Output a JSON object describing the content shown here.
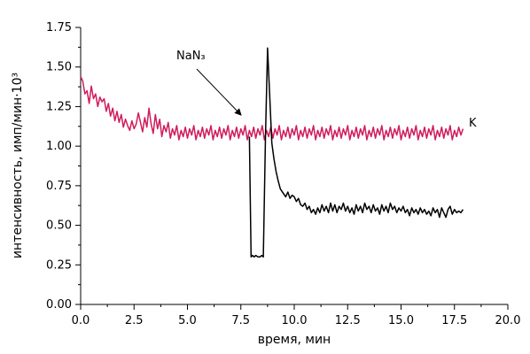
{
  "chart_data": {
    "type": "line",
    "xlabel": "время, мин",
    "ylabel": "интенсивность, имп/мин·10³",
    "xlim": [
      0,
      20
    ],
    "ylim": [
      0,
      1.75
    ],
    "xticks": [
      "0.0",
      "2.5",
      "5.0",
      "7.5",
      "10.0",
      "12.5",
      "15.0",
      "17.5",
      "20.0"
    ],
    "yticks": [
      "0.00",
      "0.25",
      "0.50",
      "0.75",
      "1.00",
      "1.25",
      "1.50",
      "1.75"
    ],
    "grid": false,
    "annotations": [
      {
        "text": "NaN₃",
        "points_to": {
          "x": 7.6,
          "y": 1.11
        }
      }
    ],
    "series": [
      {
        "name": "K",
        "color": "#d01c5b",
        "points": [
          [
            0.0,
            1.44
          ],
          [
            0.1,
            1.41
          ],
          [
            0.2,
            1.33
          ],
          [
            0.3,
            1.35
          ],
          [
            0.4,
            1.27
          ],
          [
            0.5,
            1.38
          ],
          [
            0.6,
            1.3
          ],
          [
            0.7,
            1.33
          ],
          [
            0.8,
            1.25
          ],
          [
            0.9,
            1.31
          ],
          [
            1.0,
            1.28
          ],
          [
            1.1,
            1.3
          ],
          [
            1.2,
            1.22
          ],
          [
            1.3,
            1.27
          ],
          [
            1.4,
            1.19
          ],
          [
            1.5,
            1.24
          ],
          [
            1.6,
            1.16
          ],
          [
            1.7,
            1.22
          ],
          [
            1.8,
            1.15
          ],
          [
            1.9,
            1.2
          ],
          [
            2.0,
            1.12
          ],
          [
            2.1,
            1.17
          ],
          [
            2.2,
            1.13
          ],
          [
            2.3,
            1.1
          ],
          [
            2.4,
            1.16
          ],
          [
            2.5,
            1.11
          ],
          [
            2.6,
            1.14
          ],
          [
            2.7,
            1.21
          ],
          [
            2.8,
            1.15
          ],
          [
            2.9,
            1.09
          ],
          [
            3.0,
            1.18
          ],
          [
            3.1,
            1.12
          ],
          [
            3.2,
            1.24
          ],
          [
            3.3,
            1.14
          ],
          [
            3.4,
            1.08
          ],
          [
            3.5,
            1.2
          ],
          [
            3.6,
            1.11
          ],
          [
            3.7,
            1.17
          ],
          [
            3.8,
            1.06
          ],
          [
            3.9,
            1.13
          ],
          [
            4.0,
            1.09
          ],
          [
            4.1,
            1.15
          ],
          [
            4.2,
            1.05
          ],
          [
            4.3,
            1.11
          ],
          [
            4.4,
            1.07
          ],
          [
            4.5,
            1.13
          ],
          [
            4.6,
            1.04
          ],
          [
            4.7,
            1.1
          ],
          [
            4.8,
            1.06
          ],
          [
            4.9,
            1.12
          ],
          [
            5.0,
            1.05
          ],
          [
            5.1,
            1.11
          ],
          [
            5.2,
            1.07
          ],
          [
            5.3,
            1.13
          ],
          [
            5.4,
            1.04
          ],
          [
            5.5,
            1.1
          ],
          [
            5.6,
            1.06
          ],
          [
            5.7,
            1.12
          ],
          [
            5.8,
            1.05
          ],
          [
            5.9,
            1.11
          ],
          [
            6.0,
            1.07
          ],
          [
            6.1,
            1.13
          ],
          [
            6.2,
            1.04
          ],
          [
            6.3,
            1.1
          ],
          [
            6.4,
            1.06
          ],
          [
            6.5,
            1.12
          ],
          [
            6.6,
            1.05
          ],
          [
            6.7,
            1.11
          ],
          [
            6.8,
            1.07
          ],
          [
            6.9,
            1.13
          ],
          [
            7.0,
            1.04
          ],
          [
            7.1,
            1.1
          ],
          [
            7.2,
            1.06
          ],
          [
            7.3,
            1.12
          ],
          [
            7.4,
            1.05
          ],
          [
            7.5,
            1.11
          ],
          [
            7.6,
            1.07
          ],
          [
            7.7,
            1.13
          ],
          [
            7.8,
            1.04
          ],
          [
            7.9,
            1.1
          ],
          [
            8.0,
            1.06
          ],
          [
            8.1,
            1.12
          ],
          [
            8.2,
            1.05
          ],
          [
            8.3,
            1.11
          ],
          [
            8.4,
            1.07
          ],
          [
            8.5,
            1.13
          ],
          [
            8.6,
            1.04
          ],
          [
            8.7,
            1.1
          ],
          [
            8.8,
            1.06
          ],
          [
            8.9,
            1.12
          ],
          [
            9.0,
            1.05
          ],
          [
            9.1,
            1.11
          ],
          [
            9.2,
            1.07
          ],
          [
            9.3,
            1.13
          ],
          [
            9.4,
            1.04
          ],
          [
            9.5,
            1.1
          ],
          [
            9.6,
            1.06
          ],
          [
            9.7,
            1.12
          ],
          [
            9.8,
            1.05
          ],
          [
            9.9,
            1.11
          ],
          [
            10.0,
            1.07
          ],
          [
            10.1,
            1.13
          ],
          [
            10.2,
            1.04
          ],
          [
            10.3,
            1.1
          ],
          [
            10.4,
            1.06
          ],
          [
            10.5,
            1.12
          ],
          [
            10.6,
            1.05
          ],
          [
            10.7,
            1.11
          ],
          [
            10.8,
            1.07
          ],
          [
            10.9,
            1.13
          ],
          [
            11.0,
            1.04
          ],
          [
            11.1,
            1.1
          ],
          [
            11.2,
            1.06
          ],
          [
            11.3,
            1.12
          ],
          [
            11.4,
            1.05
          ],
          [
            11.5,
            1.11
          ],
          [
            11.6,
            1.07
          ],
          [
            11.7,
            1.13
          ],
          [
            11.8,
            1.04
          ],
          [
            11.9,
            1.1
          ],
          [
            12.0,
            1.06
          ],
          [
            12.1,
            1.12
          ],
          [
            12.2,
            1.05
          ],
          [
            12.3,
            1.11
          ],
          [
            12.4,
            1.07
          ],
          [
            12.5,
            1.13
          ],
          [
            12.6,
            1.04
          ],
          [
            12.7,
            1.1
          ],
          [
            12.8,
            1.06
          ],
          [
            12.9,
            1.12
          ],
          [
            13.0,
            1.05
          ],
          [
            13.1,
            1.11
          ],
          [
            13.2,
            1.07
          ],
          [
            13.3,
            1.13
          ],
          [
            13.4,
            1.04
          ],
          [
            13.5,
            1.1
          ],
          [
            13.6,
            1.06
          ],
          [
            13.7,
            1.12
          ],
          [
            13.8,
            1.05
          ],
          [
            13.9,
            1.11
          ],
          [
            14.0,
            1.07
          ],
          [
            14.1,
            1.13
          ],
          [
            14.2,
            1.04
          ],
          [
            14.3,
            1.1
          ],
          [
            14.4,
            1.06
          ],
          [
            14.5,
            1.12
          ],
          [
            14.6,
            1.05
          ],
          [
            14.7,
            1.11
          ],
          [
            14.8,
            1.07
          ],
          [
            14.9,
            1.13
          ],
          [
            15.0,
            1.04
          ],
          [
            15.1,
            1.1
          ],
          [
            15.2,
            1.06
          ],
          [
            15.3,
            1.12
          ],
          [
            15.4,
            1.05
          ],
          [
            15.5,
            1.11
          ],
          [
            15.6,
            1.07
          ],
          [
            15.7,
            1.13
          ],
          [
            15.8,
            1.04
          ],
          [
            15.9,
            1.1
          ],
          [
            16.0,
            1.06
          ],
          [
            16.1,
            1.12
          ],
          [
            16.2,
            1.05
          ],
          [
            16.3,
            1.11
          ],
          [
            16.4,
            1.07
          ],
          [
            16.5,
            1.13
          ],
          [
            16.6,
            1.04
          ],
          [
            16.7,
            1.1
          ],
          [
            16.8,
            1.06
          ],
          [
            16.9,
            1.12
          ],
          [
            17.0,
            1.05
          ],
          [
            17.1,
            1.11
          ],
          [
            17.2,
            1.07
          ],
          [
            17.3,
            1.13
          ],
          [
            17.4,
            1.04
          ],
          [
            17.5,
            1.1
          ],
          [
            17.6,
            1.06
          ],
          [
            17.7,
            1.12
          ],
          [
            17.8,
            1.07
          ],
          [
            17.9,
            1.11
          ]
        ]
      },
      {
        "name": "",
        "color": "#000000",
        "points": [
          [
            7.9,
            1.06
          ],
          [
            7.98,
            0.3
          ],
          [
            8.05,
            0.31
          ],
          [
            8.12,
            0.3
          ],
          [
            8.2,
            0.31
          ],
          [
            8.3,
            0.3
          ],
          [
            8.4,
            0.3
          ],
          [
            8.48,
            0.31
          ],
          [
            8.55,
            0.3
          ],
          [
            8.65,
            1.05
          ],
          [
            8.75,
            1.62
          ],
          [
            8.85,
            1.32
          ],
          [
            8.95,
            1.02
          ],
          [
            9.05,
            0.92
          ],
          [
            9.15,
            0.84
          ],
          [
            9.25,
            0.78
          ],
          [
            9.35,
            0.73
          ],
          [
            9.5,
            0.7
          ],
          [
            9.6,
            0.68
          ],
          [
            9.7,
            0.71
          ],
          [
            9.8,
            0.67
          ],
          [
            9.9,
            0.69
          ],
          [
            10.0,
            0.68
          ],
          [
            10.1,
            0.65
          ],
          [
            10.2,
            0.67
          ],
          [
            10.3,
            0.63
          ],
          [
            10.4,
            0.62
          ],
          [
            10.5,
            0.64
          ],
          [
            10.6,
            0.6
          ],
          [
            10.7,
            0.62
          ],
          [
            10.8,
            0.58
          ],
          [
            10.9,
            0.6
          ],
          [
            11.0,
            0.57
          ],
          [
            11.1,
            0.61
          ],
          [
            11.2,
            0.58
          ],
          [
            11.3,
            0.63
          ],
          [
            11.4,
            0.59
          ],
          [
            11.5,
            0.62
          ],
          [
            11.6,
            0.58
          ],
          [
            11.7,
            0.64
          ],
          [
            11.8,
            0.59
          ],
          [
            11.9,
            0.63
          ],
          [
            12.0,
            0.58
          ],
          [
            12.1,
            0.62
          ],
          [
            12.2,
            0.6
          ],
          [
            12.3,
            0.64
          ],
          [
            12.4,
            0.59
          ],
          [
            12.5,
            0.62
          ],
          [
            12.6,
            0.58
          ],
          [
            12.7,
            0.61
          ],
          [
            12.8,
            0.57
          ],
          [
            12.9,
            0.63
          ],
          [
            13.0,
            0.59
          ],
          [
            13.1,
            0.62
          ],
          [
            13.2,
            0.58
          ],
          [
            13.3,
            0.64
          ],
          [
            13.4,
            0.6
          ],
          [
            13.5,
            0.62
          ],
          [
            13.6,
            0.58
          ],
          [
            13.7,
            0.63
          ],
          [
            13.8,
            0.59
          ],
          [
            13.9,
            0.61
          ],
          [
            14.0,
            0.57
          ],
          [
            14.1,
            0.63
          ],
          [
            14.2,
            0.59
          ],
          [
            14.3,
            0.62
          ],
          [
            14.4,
            0.58
          ],
          [
            14.5,
            0.64
          ],
          [
            14.6,
            0.6
          ],
          [
            14.7,
            0.62
          ],
          [
            14.8,
            0.58
          ],
          [
            14.9,
            0.61
          ],
          [
            15.0,
            0.59
          ],
          [
            15.1,
            0.62
          ],
          [
            15.2,
            0.58
          ],
          [
            15.3,
            0.6
          ],
          [
            15.4,
            0.56
          ],
          [
            15.5,
            0.61
          ],
          [
            15.6,
            0.58
          ],
          [
            15.7,
            0.6
          ],
          [
            15.8,
            0.57
          ],
          [
            15.9,
            0.61
          ],
          [
            16.0,
            0.58
          ],
          [
            16.1,
            0.6
          ],
          [
            16.2,
            0.57
          ],
          [
            16.3,
            0.59
          ],
          [
            16.4,
            0.56
          ],
          [
            16.5,
            0.61
          ],
          [
            16.6,
            0.58
          ],
          [
            16.7,
            0.6
          ],
          [
            16.8,
            0.55
          ],
          [
            16.9,
            0.61
          ],
          [
            17.0,
            0.58
          ],
          [
            17.1,
            0.55
          ],
          [
            17.2,
            0.6
          ],
          [
            17.3,
            0.62
          ],
          [
            17.4,
            0.57
          ],
          [
            17.5,
            0.6
          ],
          [
            17.6,
            0.58
          ],
          [
            17.7,
            0.59
          ],
          [
            17.8,
            0.58
          ],
          [
            17.9,
            0.6
          ]
        ]
      }
    ]
  }
}
